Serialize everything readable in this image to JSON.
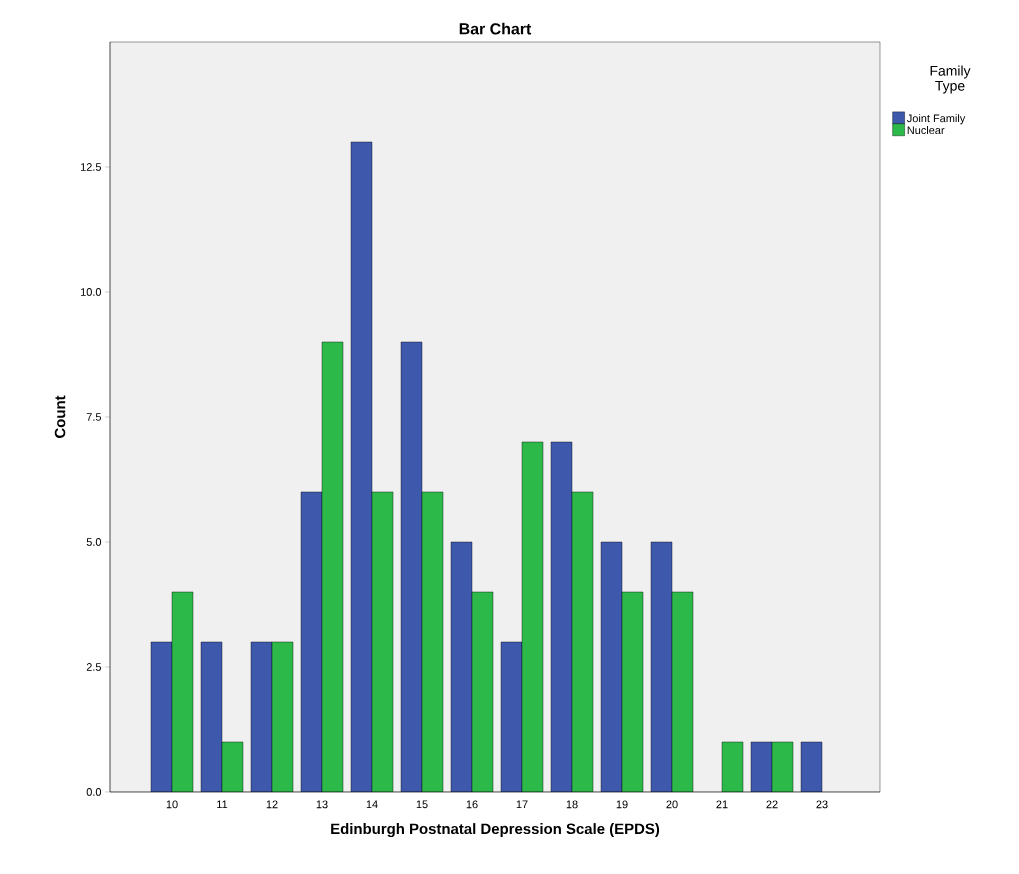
{
  "chart_data": {
    "type": "bar",
    "title": "Bar Chart",
    "xlabel": "Edinburgh Postnatal Depression Scale (EPDS)",
    "ylabel": "Count",
    "legend_title": "Family Type",
    "categories": [
      "10",
      "11",
      "12",
      "13",
      "14",
      "15",
      "16",
      "17",
      "18",
      "19",
      "20",
      "21",
      "22",
      "23"
    ],
    "series": [
      {
        "name": "Joint Family",
        "color": "#3e58ac",
        "values": [
          3,
          3,
          3,
          6,
          13,
          9,
          5,
          3,
          7,
          5,
          5,
          null,
          1,
          1
        ]
      },
      {
        "name": "Nuclear",
        "color": "#2db84a",
        "values": [
          4,
          1,
          3,
          9,
          6,
          6,
          4,
          7,
          6,
          4,
          4,
          1,
          1,
          null
        ]
      }
    ],
    "ylim": [
      0,
      15
    ],
    "yticks": [
      {
        "value": 0,
        "label": "0.0"
      },
      {
        "value": 2.5,
        "label": "2.5"
      },
      {
        "value": 5,
        "label": "5.0"
      },
      {
        "value": 7.5,
        "label": "7.5"
      },
      {
        "value": 10,
        "label": "10.0"
      },
      {
        "value": 12.5,
        "label": "12.5"
      }
    ],
    "grid": false,
    "legend": "top right"
  }
}
